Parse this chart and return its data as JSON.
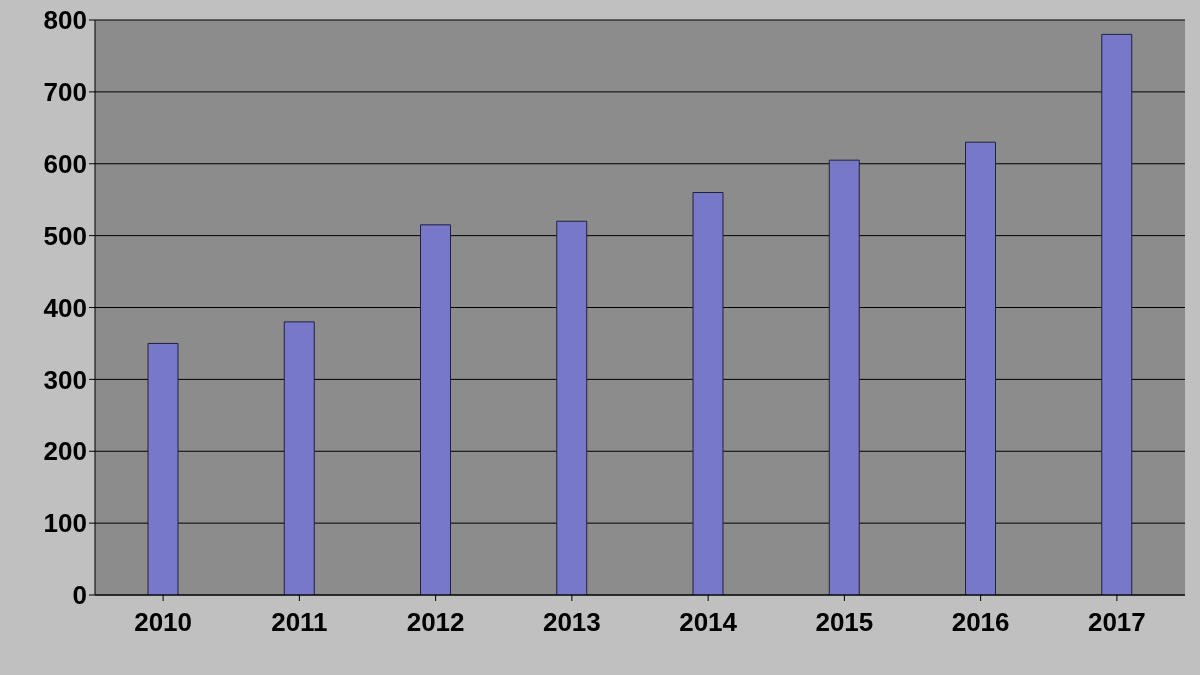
{
  "chart_data": {
    "type": "bar",
    "categories": [
      "2010",
      "2011",
      "2012",
      "2013",
      "2014",
      "2015",
      "2016",
      "2017"
    ],
    "values": [
      350,
      380,
      515,
      520,
      560,
      605,
      630,
      780
    ],
    "color": "#7878c8",
    "ylim": [
      0,
      800
    ],
    "yticks": [
      0,
      100,
      200,
      300,
      400,
      500,
      600,
      700,
      800
    ],
    "grid": "y"
  }
}
